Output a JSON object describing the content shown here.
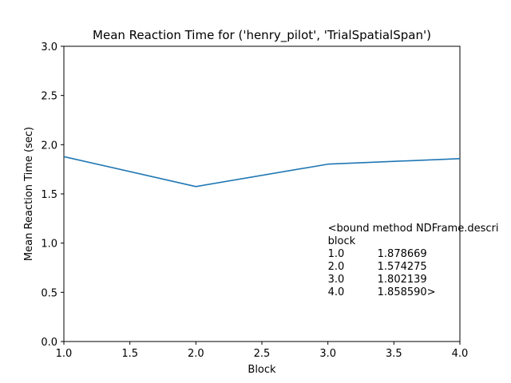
{
  "chart_data": {
    "type": "line",
    "title": "Mean Reaction Time for ('henry_pilot', 'TrialSpatialSpan')",
    "xlabel": "Block",
    "ylabel": "Mean Reaction Time (sec)",
    "xlim": [
      1.0,
      4.0
    ],
    "ylim": [
      0.0,
      3.0
    ],
    "xticks": [
      "1.0",
      "1.5",
      "2.0",
      "2.5",
      "3.0",
      "3.5",
      "4.0"
    ],
    "yticks": [
      "0.0",
      "0.5",
      "1.0",
      "1.5",
      "2.0",
      "2.5",
      "3.0"
    ],
    "grid": false,
    "series": [
      {
        "x": [
          1.0,
          2.0,
          3.0,
          4.0
        ],
        "y": [
          1.878669,
          1.574275,
          1.802139,
          1.85859
        ],
        "color": "#1f77b4"
      }
    ],
    "annotation_lines": [
      "<bound method NDFrame.descri",
      "block",
      "1.0          1.878669",
      "2.0          1.574275",
      "3.0          1.802139",
      "4.0          1.858590>"
    ]
  }
}
